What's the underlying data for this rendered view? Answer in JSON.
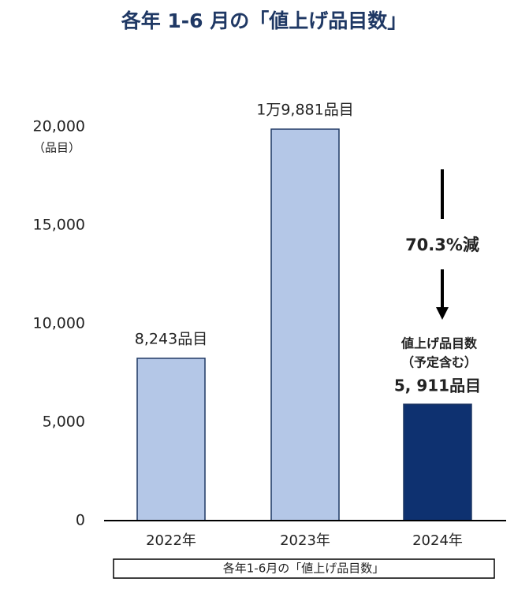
{
  "chart_data": {
    "type": "bar",
    "title": "各年 1-6 月の「値上げ品目数」",
    "y_label": "（品目）",
    "x_label": "各年1-6月の「値上げ品目数」",
    "categories": [
      "2022年",
      "2023年",
      "2024年"
    ],
    "values": [
      8243,
      19881,
      5911
    ],
    "value_labels": [
      "8,243品目",
      "1万9,881品目",
      "5, 911品目"
    ],
    "colors": [
      "#b4c7e7",
      "#b4c7e7",
      "#0e3170"
    ],
    "ylim": [
      0,
      20000
    ],
    "yticks": [
      0,
      {
        "value": 5000,
        "label": "5,000"
      },
      {
        "value": 10000,
        "label": "10,000"
      },
      {
        "value": 15000,
        "label": "15,000"
      },
      {
        "value": 20000,
        "label": "20,000"
      }
    ],
    "annotations": [
      "70.3%減",
      "値上げ品目数",
      "（予定含む）"
    ]
  }
}
